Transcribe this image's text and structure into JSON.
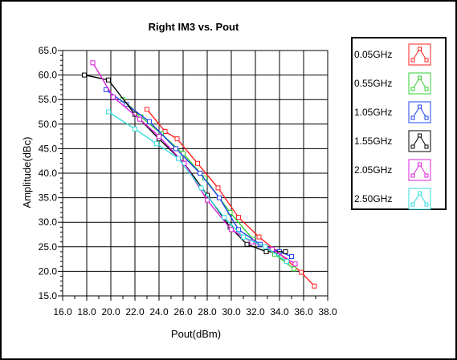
{
  "chart_data": {
    "type": "line",
    "title": "Right IM3 vs. Pout",
    "xlabel": "Pout(dBm)",
    "ylabel": "Amplitude(dBc)",
    "xlim": [
      16.0,
      38.0
    ],
    "ylim": [
      15.0,
      65.0
    ],
    "x_ticks": [
      "16.0",
      "18.0",
      "20.0",
      "22.0",
      "24.0",
      "26.0",
      "28.0",
      "30.0",
      "32.0",
      "34.0",
      "36.0",
      "38.0"
    ],
    "y_ticks": [
      "15.0",
      "20.0",
      "25.0",
      "30.0",
      "35.0",
      "40.0",
      "45.0",
      "50.0",
      "55.0",
      "60.0",
      "65.0"
    ],
    "grid": true,
    "legend_position": "right",
    "series": [
      {
        "name": "0.05GHz",
        "color": "#ff2020",
        "marker": "square",
        "x": [
          23.0,
          24.5,
          25.5,
          27.2,
          28.9,
          30.6,
          32.3,
          33.8,
          35.8,
          36.9
        ],
        "y": [
          53.0,
          48.5,
          47.0,
          42.0,
          37.0,
          31.0,
          27.0,
          24.0,
          19.8,
          17.0
        ]
      },
      {
        "name": "0.55GHz",
        "color": "#33cc33",
        "marker": "square",
        "x": [
          21.0,
          22.5,
          24.2,
          26.0,
          27.8,
          29.9,
          31.8,
          33.6,
          35.2
        ],
        "y": [
          55.0,
          51.5,
          48.0,
          44.0,
          39.0,
          32.0,
          26.5,
          23.5,
          20.5
        ]
      },
      {
        "name": "1.05GHz",
        "color": "#2244ee",
        "marker": "square",
        "x": [
          19.6,
          21.3,
          23.2,
          25.4,
          27.4,
          29.0,
          30.6,
          32.4,
          34.0,
          35.0
        ],
        "y": [
          57.0,
          54.0,
          50.5,
          45.0,
          40.0,
          35.0,
          28.5,
          25.5,
          24.0,
          23.0
        ]
      },
      {
        "name": "1.55GHz",
        "color": "#000000",
        "marker": "square",
        "x": [
          17.8,
          19.8,
          22.0,
          24.0,
          26.1,
          28.0,
          29.9,
          31.3,
          32.9,
          34.5
        ],
        "y": [
          60.0,
          59.0,
          52.0,
          47.0,
          42.0,
          35.5,
          29.0,
          25.5,
          24.0,
          24.0
        ]
      },
      {
        "name": "2.05GHz",
        "color": "#dd22dd",
        "marker": "square",
        "x": [
          18.5,
          20.2,
          22.4,
          24.0,
          26.1,
          28.0,
          30.0,
          31.7,
          33.4,
          35.3
        ],
        "y": [
          62.5,
          55.5,
          51.0,
          47.5,
          42.0,
          34.5,
          28.5,
          26.0,
          24.5,
          21.5
        ]
      },
      {
        "name": "2.50GHz",
        "color": "#33dddd",
        "marker": "square",
        "x": [
          19.8,
          22.0,
          23.8,
          25.6,
          27.5,
          29.4,
          31.0,
          32.8,
          34.6
        ],
        "y": [
          52.5,
          49.0,
          46.0,
          43.0,
          37.0,
          31.0,
          27.0,
          25.0,
          22.0
        ]
      }
    ]
  }
}
